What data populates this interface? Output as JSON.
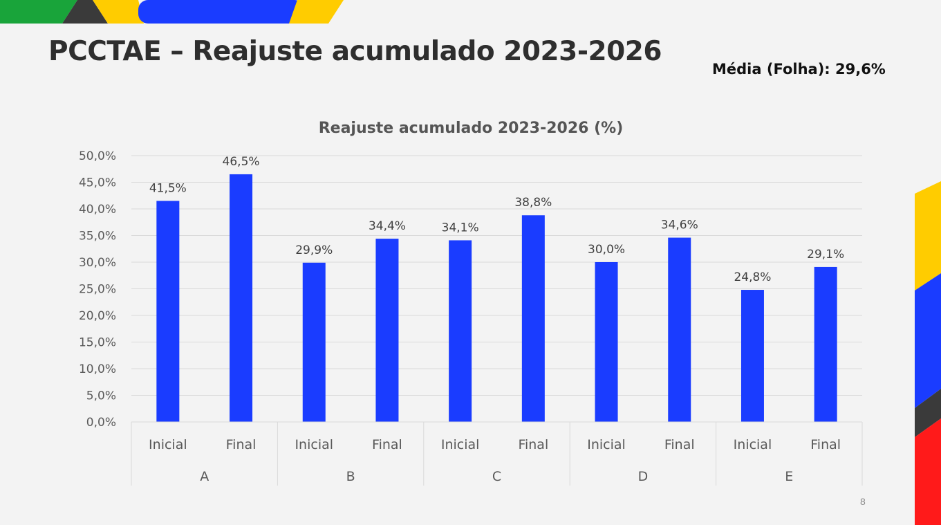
{
  "slide": {
    "title": "PCCTAE – Reajuste acumulado 2023-2026",
    "media_label": "Média (Folha): 29,6%",
    "page_number": "8"
  },
  "colors": {
    "bar": "#1a3cff",
    "brand_green": "#19a43a",
    "brand_dark": "#3a3a3a",
    "brand_yellow": "#ffcc00",
    "brand_blue": "#1a3cff",
    "brand_red": "#ff1a1a"
  },
  "chart_data": {
    "type": "bar",
    "title": "Reajuste acumulado 2023-2026 (%)",
    "groups": [
      "A",
      "B",
      "C",
      "D",
      "E"
    ],
    "subcategories": [
      "Inicial",
      "Final"
    ],
    "values": [
      41.5,
      46.5,
      29.9,
      34.4,
      34.1,
      38.8,
      30.0,
      34.6,
      24.8,
      29.1
    ],
    "value_labels": [
      "41,5%",
      "46,5%",
      "29,9%",
      "34,4%",
      "34,1%",
      "38,8%",
      "30,0%",
      "34,6%",
      "24,8%",
      "29,1%"
    ],
    "ylim": [
      0,
      50
    ],
    "yticks": [
      "0,0%",
      "5,0%",
      "10,0%",
      "15,0%",
      "20,0%",
      "25,0%",
      "30,0%",
      "35,0%",
      "40,0%",
      "45,0%",
      "50,0%"
    ],
    "grid": true,
    "legend": "none"
  }
}
